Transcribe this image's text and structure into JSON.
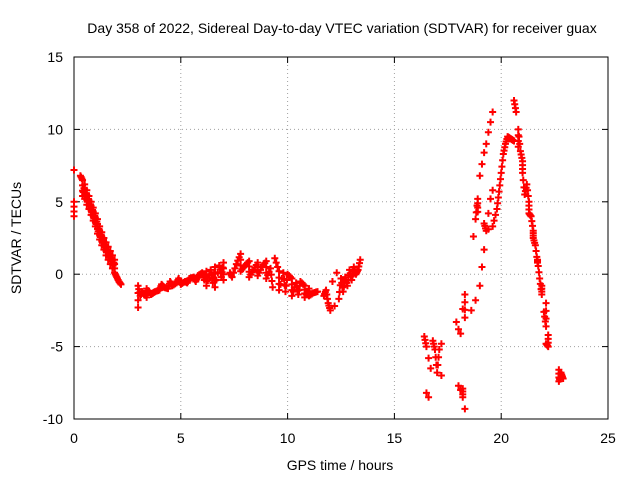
{
  "chart_data": {
    "type": "scatter",
    "title": "Day 358 of 2022, Sidereal Day-to-day VTEC variation (SDTVAR) for receiver guax",
    "xlabel": "GPS time / hours",
    "ylabel": "SDTVAR / TECUs",
    "xlim": [
      0,
      25
    ],
    "ylim": [
      -10,
      15
    ],
    "xticks": [
      0,
      5,
      10,
      15,
      20,
      25
    ],
    "yticks": [
      -10,
      -5,
      0,
      5,
      10,
      15
    ],
    "xtick_labels": [
      "0",
      "5",
      "10",
      "15",
      "20",
      "25"
    ],
    "ytick_labels": [
      "-10",
      "-5",
      "0",
      "5",
      "10",
      "15"
    ],
    "grid": true,
    "marker": "+",
    "series": [
      {
        "name": "SDTVAR",
        "color": "#ff0000",
        "points": [
          [
            0.0,
            7.2
          ],
          [
            0.0,
            5.0
          ],
          [
            0.0,
            4.0
          ],
          [
            0.3,
            6.8
          ],
          [
            0.4,
            6.5
          ],
          [
            0.5,
            6.2
          ],
          [
            0.6,
            5.8
          ],
          [
            0.7,
            5.4
          ],
          [
            0.8,
            5.0
          ],
          [
            0.9,
            4.6
          ],
          [
            1.0,
            4.2
          ],
          [
            1.1,
            3.8
          ],
          [
            1.2,
            3.3
          ],
          [
            1.3,
            2.9
          ],
          [
            1.4,
            2.5
          ],
          [
            1.5,
            2.2
          ],
          [
            1.6,
            1.9
          ],
          [
            1.7,
            1.6
          ],
          [
            1.8,
            1.3
          ],
          [
            1.9,
            1.0
          ],
          [
            0.4,
            5.4
          ],
          [
            0.5,
            5.2
          ],
          [
            0.6,
            4.8
          ],
          [
            0.7,
            4.5
          ],
          [
            0.8,
            4.1
          ],
          [
            0.9,
            3.7
          ],
          [
            1.0,
            3.3
          ],
          [
            1.1,
            2.8
          ],
          [
            1.2,
            2.4
          ],
          [
            1.3,
            2.0
          ],
          [
            1.4,
            1.7
          ],
          [
            1.5,
            1.3
          ],
          [
            1.6,
            1.0
          ],
          [
            1.7,
            0.7
          ],
          [
            1.8,
            0.4
          ],
          [
            1.9,
            0.1
          ],
          [
            2.0,
            -0.2
          ],
          [
            2.1,
            -0.5
          ],
          [
            2.2,
            -0.7
          ],
          [
            3.0,
            -2.3
          ],
          [
            3.0,
            -0.8
          ],
          [
            3.1,
            -1.5
          ],
          [
            3.2,
            -1.2
          ],
          [
            3.4,
            -1.6
          ],
          [
            3.6,
            -1.4
          ],
          [
            3.8,
            -1.2
          ],
          [
            4.0,
            -1.1
          ],
          [
            4.2,
            -0.9
          ],
          [
            4.4,
            -1.0
          ],
          [
            4.6,
            -0.8
          ],
          [
            4.8,
            -0.6
          ],
          [
            5.0,
            -0.7
          ],
          [
            5.2,
            -0.5
          ],
          [
            5.4,
            -0.3
          ],
          [
            5.6,
            -0.2
          ],
          [
            5.8,
            -0.1
          ],
          [
            6.0,
            0.1
          ],
          [
            6.2,
            0.2
          ],
          [
            6.4,
            0.3
          ],
          [
            6.6,
            0.5
          ],
          [
            6.8,
            0.6
          ],
          [
            7.0,
            0.8
          ],
          [
            3.4,
            -1.0
          ],
          [
            3.7,
            -1.3
          ],
          [
            4.1,
            -0.7
          ],
          [
            4.5,
            -0.5
          ],
          [
            4.9,
            -0.3
          ],
          [
            5.3,
            -0.6
          ],
          [
            5.7,
            -0.5
          ],
          [
            6.1,
            -0.4
          ],
          [
            6.5,
            -0.6
          ],
          [
            6.9,
            -0.2
          ],
          [
            7.3,
            0.1
          ],
          [
            7.6,
            0.7
          ],
          [
            7.8,
            1.4
          ],
          [
            8.0,
            0.6
          ],
          [
            8.2,
            0.9
          ],
          [
            8.4,
            0.3
          ],
          [
            8.6,
            0.8
          ],
          [
            8.8,
            0.5
          ],
          [
            9.0,
            0.9
          ],
          [
            9.2,
            0.4
          ],
          [
            9.4,
            1.1
          ],
          [
            9.6,
            0.2
          ],
          [
            9.8,
            0.1
          ],
          [
            10.0,
            0.0
          ],
          [
            10.2,
            -0.3
          ],
          [
            10.4,
            -0.6
          ],
          [
            10.6,
            -0.5
          ],
          [
            10.8,
            -0.8
          ],
          [
            11.0,
            -1.0
          ],
          [
            11.2,
            -1.3
          ],
          [
            11.4,
            -1.2
          ],
          [
            9.3,
            -0.9
          ],
          [
            9.6,
            -1.1
          ],
          [
            9.9,
            -1.2
          ],
          [
            10.2,
            -1.5
          ],
          [
            10.5,
            -1.4
          ],
          [
            10.8,
            -1.6
          ],
          [
            11.0,
            -1.5
          ],
          [
            6.2,
            -0.8
          ],
          [
            6.6,
            -0.9
          ],
          [
            7.0,
            -0.4
          ],
          [
            7.4,
            -0.2
          ],
          [
            7.8,
            0.2
          ],
          [
            8.2,
            -0.2
          ],
          [
            8.6,
            -0.1
          ],
          [
            9.0,
            -0.3
          ],
          [
            11.7,
            -1.5
          ],
          [
            11.9,
            -2.0
          ],
          [
            12.0,
            -2.5
          ],
          [
            12.2,
            -2.2
          ],
          [
            12.4,
            -1.7
          ],
          [
            12.6,
            -1.2
          ],
          [
            12.8,
            -0.8
          ],
          [
            13.0,
            -0.4
          ],
          [
            13.2,
            0.0
          ],
          [
            13.4,
            1.0
          ],
          [
            11.8,
            -1.1
          ],
          [
            12.1,
            -0.5
          ],
          [
            12.3,
            0.1
          ],
          [
            12.5,
            -0.3
          ],
          [
            12.7,
            -0.2
          ],
          [
            12.9,
            0.3
          ],
          [
            13.1,
            0.5
          ],
          [
            13.3,
            0.3
          ],
          [
            16.4,
            -4.3
          ],
          [
            16.5,
            -5.0
          ],
          [
            16.6,
            -5.8
          ],
          [
            16.7,
            -6.5
          ],
          [
            16.8,
            -4.6
          ],
          [
            16.9,
            -5.2
          ],
          [
            17.0,
            -6.8
          ],
          [
            17.2,
            -7.0
          ],
          [
            16.5,
            -8.2
          ],
          [
            16.6,
            -8.5
          ],
          [
            17.2,
            -4.8
          ],
          [
            17.1,
            -5.2
          ],
          [
            18.0,
            -7.7
          ],
          [
            18.1,
            -8.0
          ],
          [
            18.2,
            -8.5
          ],
          [
            18.3,
            -9.3
          ],
          [
            18.2,
            -7.9
          ],
          [
            17.9,
            -3.3
          ],
          [
            18.0,
            -3.8
          ],
          [
            18.1,
            -4.1
          ],
          [
            18.2,
            -2.4
          ],
          [
            18.3,
            -1.4
          ],
          [
            18.3,
            -3.0
          ],
          [
            18.6,
            -2.5
          ],
          [
            18.8,
            -1.8
          ],
          [
            19.0,
            -0.8
          ],
          [
            19.1,
            0.5
          ],
          [
            19.2,
            1.7
          ],
          [
            19.3,
            3.0
          ],
          [
            19.4,
            4.2
          ],
          [
            19.5,
            5.2
          ],
          [
            19.6,
            5.8
          ],
          [
            18.7,
            2.6
          ],
          [
            18.8,
            3.8
          ],
          [
            18.9,
            5.2
          ],
          [
            19.0,
            6.8
          ],
          [
            19.1,
            7.6
          ],
          [
            19.2,
            8.4
          ],
          [
            19.3,
            9.0
          ],
          [
            19.4,
            9.8
          ],
          [
            19.5,
            10.5
          ],
          [
            19.6,
            11.2
          ],
          [
            18.9,
            4.3
          ],
          [
            19.2,
            3.5
          ],
          [
            19.4,
            3.1
          ],
          [
            19.6,
            3.3
          ],
          [
            19.8,
            4.5
          ],
          [
            19.9,
            5.7
          ],
          [
            20.0,
            7.0
          ],
          [
            20.1,
            8.3
          ],
          [
            20.2,
            9.0
          ],
          [
            20.4,
            9.4
          ],
          [
            20.6,
            9.2
          ],
          [
            20.8,
            8.8
          ],
          [
            21.0,
            7.8
          ],
          [
            21.2,
            6.2
          ],
          [
            21.3,
            5.0
          ],
          [
            21.4,
            4.0
          ],
          [
            21.5,
            3.0
          ],
          [
            21.6,
            2.0
          ],
          [
            21.7,
            0.8
          ],
          [
            21.8,
            -0.3
          ],
          [
            21.9,
            -1.4
          ],
          [
            22.0,
            -2.6
          ],
          [
            22.1,
            -3.6
          ],
          [
            22.2,
            -5.0
          ],
          [
            20.3,
            9.5
          ],
          [
            20.5,
            9.3
          ],
          [
            20.6,
            12.0
          ],
          [
            20.7,
            11.2
          ],
          [
            20.8,
            10.0
          ],
          [
            20.9,
            8.5
          ],
          [
            21.0,
            7.0
          ],
          [
            21.1,
            5.5
          ],
          [
            21.3,
            4.2
          ],
          [
            21.5,
            2.5
          ],
          [
            21.7,
            1.0
          ],
          [
            21.9,
            -0.8
          ],
          [
            22.1,
            -2.0
          ],
          [
            22.2,
            -4.2
          ],
          [
            22.1,
            -4.8
          ],
          [
            22.7,
            -6.6
          ],
          [
            22.8,
            -7.0
          ],
          [
            22.9,
            -7.2
          ],
          [
            22.7,
            -7.4
          ],
          [
            22.8,
            -6.8
          ]
        ]
      }
    ]
  }
}
